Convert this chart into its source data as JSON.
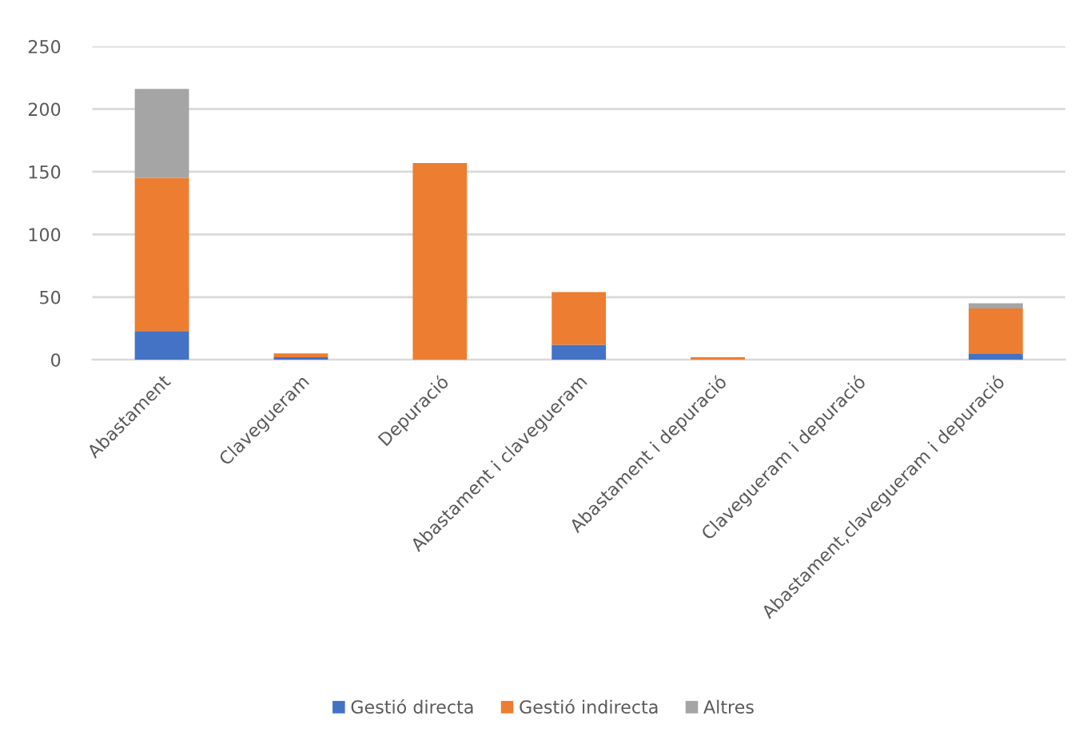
{
  "chart_data": {
    "type": "bar",
    "stacked": true,
    "categories": [
      "Abastament",
      "Clavegueram",
      "Depuració",
      "Abastament i clavegueram",
      "Abastament i depuració",
      "Clavegueram i depuració",
      "Abastament,clavegueram i depuració"
    ],
    "series": [
      {
        "name": "Gestió directa",
        "color": "#4472c4",
        "values": [
          23,
          2,
          0,
          12,
          0,
          0,
          5
        ]
      },
      {
        "name": "Gestió indirecta",
        "color": "#ed7d31",
        "values": [
          122,
          3,
          157,
          42,
          2,
          0,
          36
        ]
      },
      {
        "name": "Altres",
        "color": "#a5a5a5",
        "values": [
          71,
          0,
          0,
          0,
          0,
          0,
          4
        ]
      }
    ],
    "ylim": [
      0,
      250
    ],
    "yticks": [
      0,
      50,
      100,
      150,
      200,
      250
    ],
    "grid": "y",
    "legend": "bottom"
  }
}
